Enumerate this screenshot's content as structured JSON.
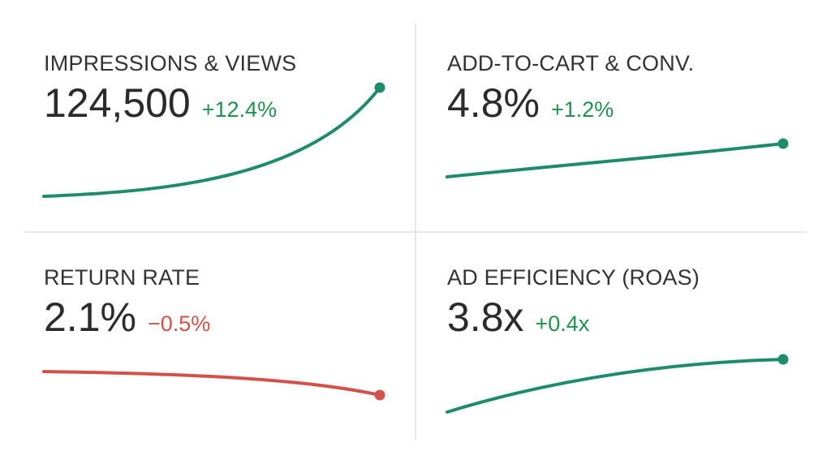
{
  "cards": [
    {
      "title": "IMPRESSIONS & VIEWS",
      "value": "124,500",
      "delta": "+12.4%"
    },
    {
      "title": "ADD-TO-CART & CONV.",
      "value": "4.8%",
      "delta": "+1.2%"
    },
    {
      "title": "RETURN RATE",
      "value": "2.1%",
      "delta": "−0.5%"
    },
    {
      "title": "AD EFFICIENCY (ROAS)",
      "value": "3.8x",
      "delta": "+0.4x"
    }
  ]
}
